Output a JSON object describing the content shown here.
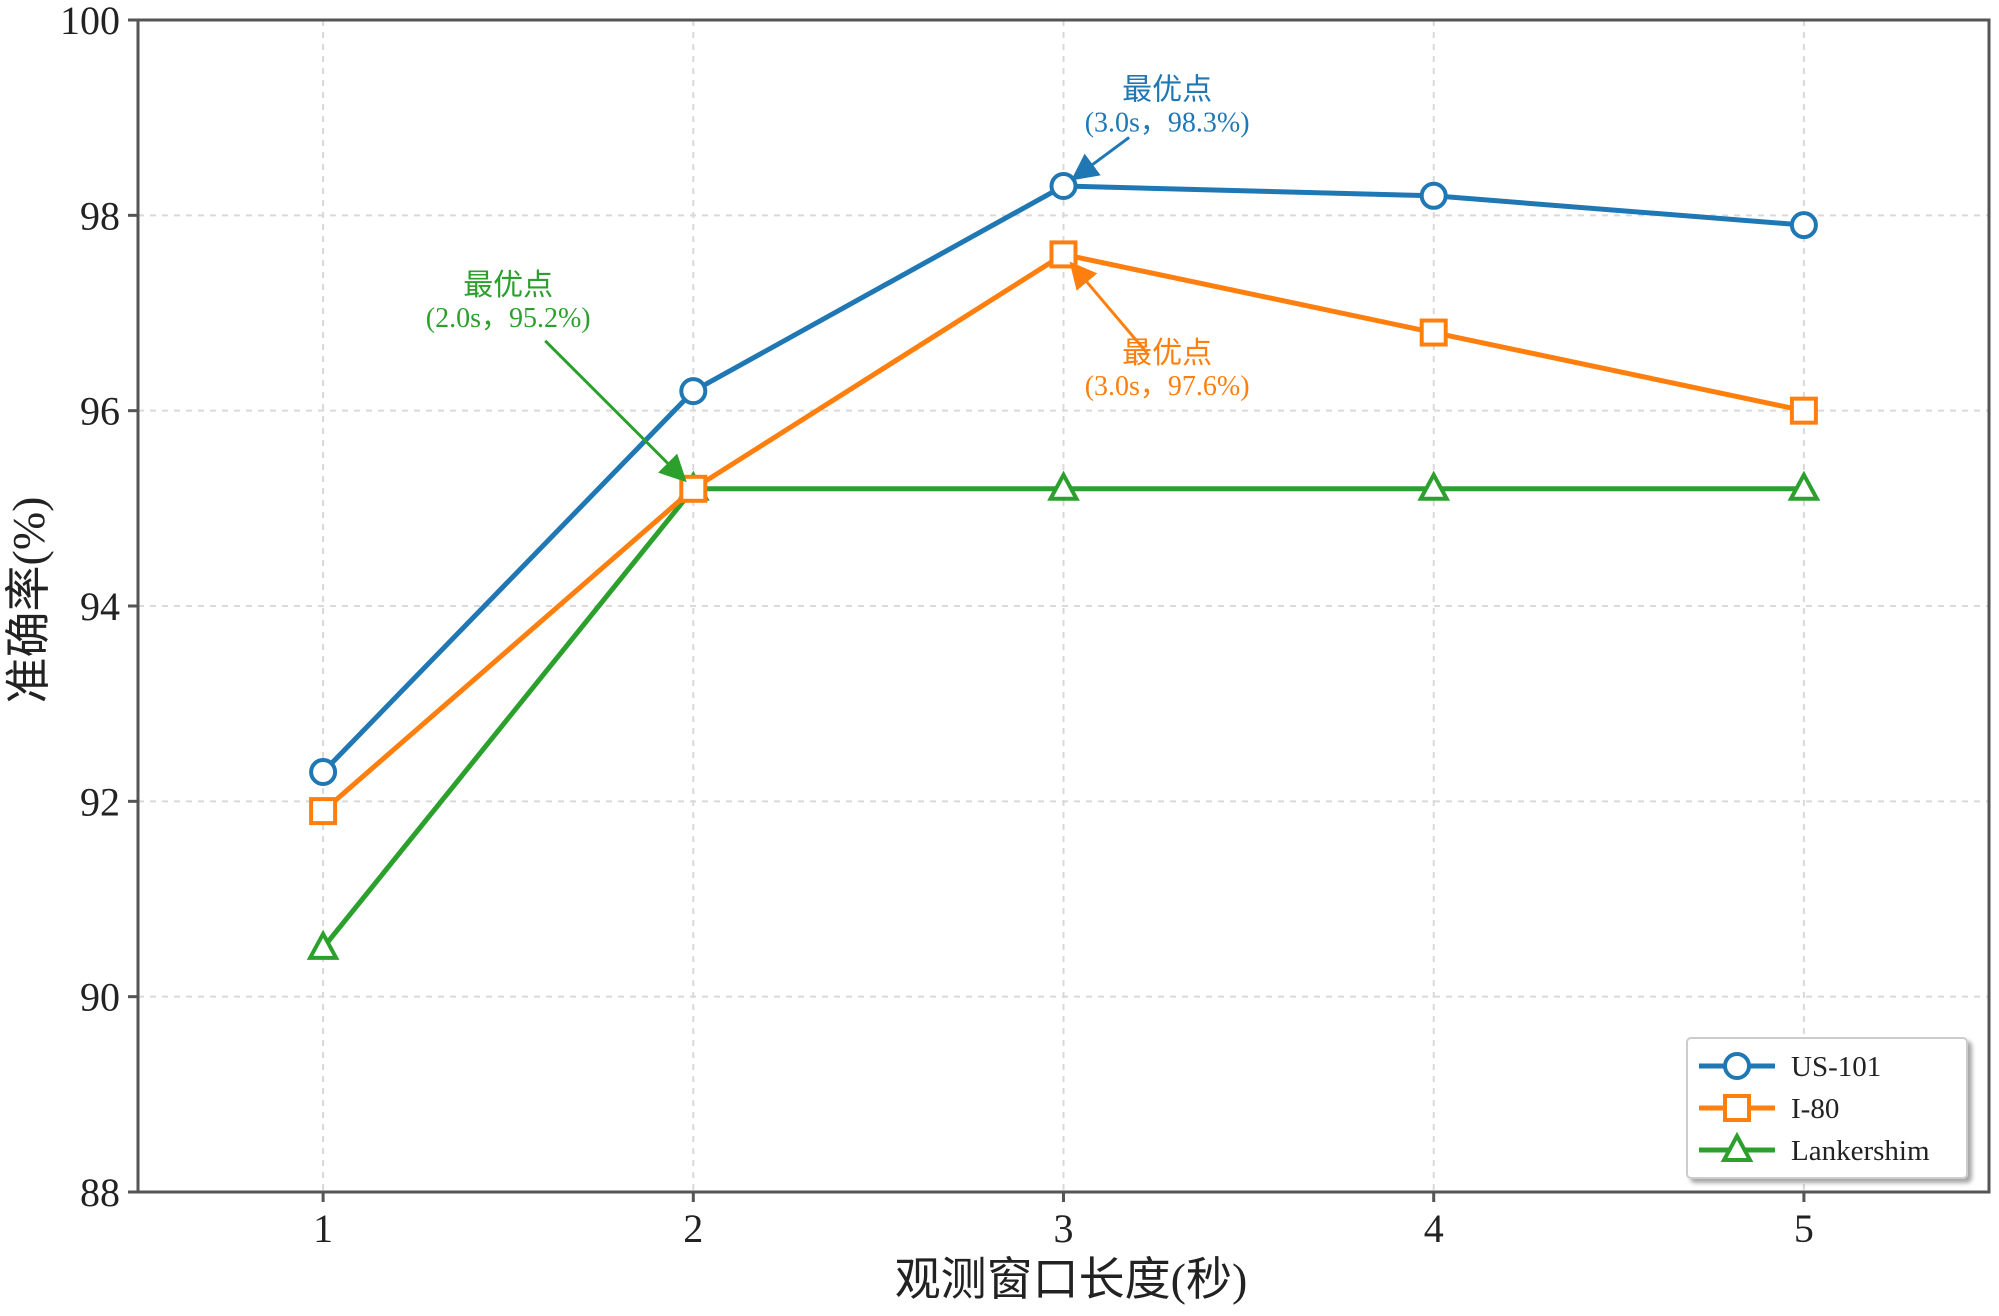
{
  "chart_data": {
    "type": "line",
    "title": "",
    "xlabel": "观测窗口长度(秒)",
    "ylabel": "准确率(%)",
    "x": [
      1,
      2,
      3,
      4,
      5
    ],
    "x_ticks": [
      "1",
      "2",
      "3",
      "4",
      "5"
    ],
    "xlim": [
      0.5,
      5.5
    ],
    "ylim": [
      88,
      100
    ],
    "y_ticks": [
      "88",
      "90",
      "92",
      "94",
      "96",
      "98",
      "100"
    ],
    "grid": true,
    "legend_position": "bottom-right",
    "series": [
      {
        "name": "US-101",
        "values": [
          92.3,
          96.2,
          98.3,
          98.2,
          97.9
        ],
        "color": "#1f77b4",
        "marker": "circle"
      },
      {
        "name": "I-80",
        "values": [
          91.9,
          95.2,
          97.6,
          96.8,
          96.0
        ],
        "color": "#ff7f0e",
        "marker": "square"
      },
      {
        "name": "Lankershim",
        "values": [
          90.5,
          95.2,
          95.2,
          95.2,
          95.2
        ],
        "color": "#2ca02c",
        "marker": "triangle"
      }
    ],
    "annotations": [
      {
        "series": "US-101",
        "point_x": 3.0,
        "point_y": 98.3,
        "text_x": 3.28,
        "text_y": 98.9,
        "line1": "最优点",
        "line2": "(3.0s，98.3%)",
        "color": "#1f77b4"
      },
      {
        "series": "Lankershim",
        "point_x": 2.0,
        "point_y": 95.2,
        "text_x": 1.5,
        "text_y": 96.9,
        "line1": "最优点",
        "line2": "(2.0s，95.2%)",
        "color": "#2ca02c"
      },
      {
        "series": "I-80",
        "point_x": 3.0,
        "point_y": 97.6,
        "text_x": 3.28,
        "text_y": 96.2,
        "line1": "最优点",
        "line2": "(3.0s，97.6%)",
        "color": "#ff7f0e"
      }
    ]
  }
}
